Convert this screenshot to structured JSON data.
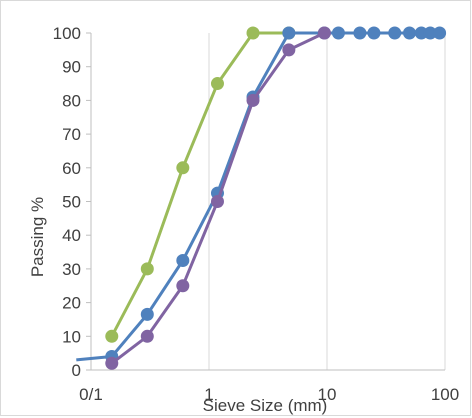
{
  "chart_data": {
    "type": "line",
    "x_scale": "log",
    "xlim": [
      0.1,
      100
    ],
    "ylim": [
      0,
      100
    ],
    "x_tick_labels": [
      "0/1",
      "1",
      "10",
      "100"
    ],
    "x_tick_values": [
      0.1,
      1,
      10,
      100
    ],
    "y_ticks": [
      0,
      10,
      20,
      30,
      40,
      50,
      60,
      70,
      80,
      90,
      100
    ],
    "xlabel": "Sieve Size (mm)",
    "ylabel": "Passing %",
    "grid": "vertical-major",
    "series": [
      {
        "color": "#9BBB59",
        "x": [
          0.15,
          0.3,
          0.6,
          1.18,
          2.36,
          4.75
        ],
        "y": [
          10,
          30,
          60,
          85,
          100,
          100
        ]
      },
      {
        "color": "#4F81BD",
        "x": [
          0.075,
          0.15,
          0.3,
          0.6,
          1.18,
          2.36,
          4.75,
          9.5,
          12.5,
          19,
          25,
          37.5,
          50,
          63,
          75,
          90
        ],
        "y": [
          3,
          4,
          16.5,
          32.5,
          52.5,
          81,
          100,
          100,
          100,
          100,
          100,
          100,
          100,
          100,
          100,
          100
        ]
      },
      {
        "color": "#8064A2",
        "x": [
          0.15,
          0.3,
          0.6,
          1.18,
          2.36,
          4.75,
          9.5
        ],
        "y": [
          2,
          10,
          25,
          50,
          80,
          95,
          100
        ]
      }
    ]
  }
}
